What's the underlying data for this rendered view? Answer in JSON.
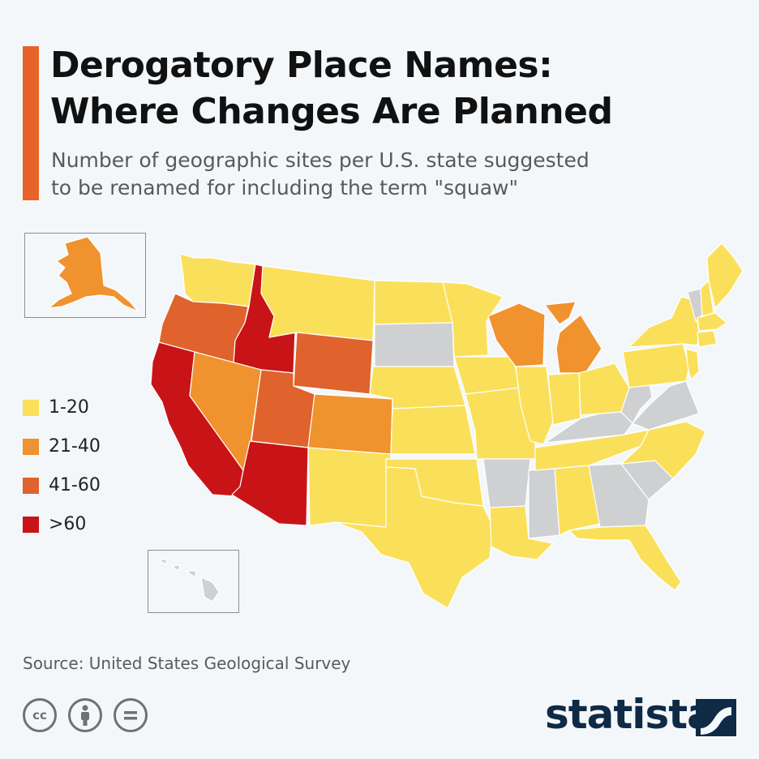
{
  "title": {
    "line1": "Derogatory Place Names:",
    "line2": "Where Changes Are Planned"
  },
  "subtitle": {
    "line1": "Number of geographic sites per U.S. state suggested",
    "line2": "to be renamed for including the term \"squaw\""
  },
  "legend": [
    {
      "label": "1-20",
      "color": "#fae05a"
    },
    {
      "label": "21-40",
      "color": "#f0922e"
    },
    {
      "label": "41-60",
      "color": "#e0622c"
    },
    {
      "label": ">60",
      "color": "#c81417"
    }
  ],
  "no_data_color": "#cfd0d1",
  "state_categories": {
    "CA": ">60",
    "ID": ">60",
    "AZ": ">60",
    "OR": "41-60",
    "WY": "41-60",
    "UT": "41-60",
    "NV": "21-40",
    "CO": "21-40",
    "WI": "21-40",
    "MI": "21-40",
    "AK": "21-40",
    "WA": "1-20",
    "MT": "1-20",
    "ND": "1-20",
    "MN": "1-20",
    "NE": "1-20",
    "KS": "1-20",
    "OK": "1-20",
    "TX": "1-20",
    "NM": "1-20",
    "IA": "1-20",
    "MO": "1-20",
    "IL": "1-20",
    "IN": "1-20",
    "OH": "1-20",
    "LA": "1-20",
    "AL": "1-20",
    "FL": "1-20",
    "TN": "1-20",
    "NC": "1-20",
    "PA": "1-20",
    "NY": "1-20",
    "ME": "1-20",
    "NH": "1-20",
    "MA": "1-20",
    "CT": "1-20",
    "NJ": "1-20",
    "SD": null,
    "AR": null,
    "MS": null,
    "GA": null,
    "SC": null,
    "KY": null,
    "VA": null,
    "WV": null,
    "VT": null,
    "HI": null
  },
  "source": "Source: United States Geological Survey",
  "license_icons": [
    "cc-icon",
    "attribution-icon",
    "no-derivatives-icon"
  ],
  "brand": "statista"
}
